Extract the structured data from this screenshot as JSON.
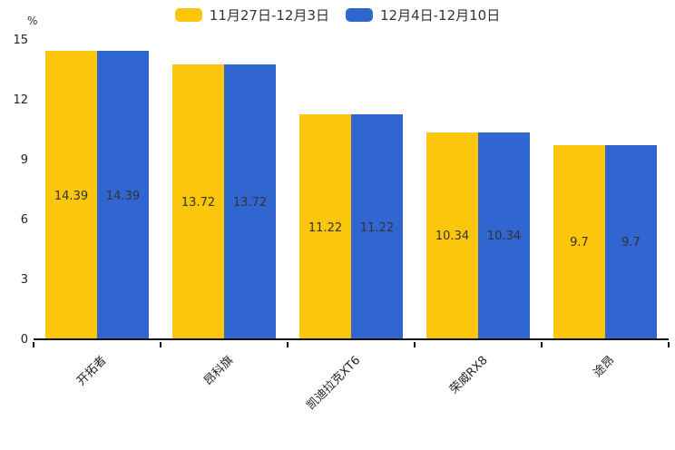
{
  "chart_data": {
    "type": "bar",
    "title": "",
    "categories": [
      "开拓者",
      "昂科旗",
      "凯迪拉克XT6",
      "荣威RX8",
      "途昂"
    ],
    "series": [
      {
        "name": "11月27日-12月3日",
        "color": "#FCC60D",
        "values": [
          14.39,
          13.72,
          11.22,
          10.34,
          9.7
        ]
      },
      {
        "name": "12月4日-12月10日",
        "color": "#3165CF",
        "values": [
          14.39,
          13.72,
          11.22,
          10.34,
          9.7
        ]
      }
    ],
    "xlabel": "",
    "ylabel": "%",
    "yticks": [
      0,
      3,
      6,
      9,
      12,
      15
    ],
    "ylim": [
      0,
      15
    ],
    "grid": false,
    "legend_position": "top",
    "value_labels": "inside-center",
    "xtick_rotation": -45
  },
  "colors": {
    "background": "#ffffff",
    "axis": "#111111",
    "text": "#333333",
    "series1": "#FCC60D",
    "series2": "#3165CF"
  }
}
